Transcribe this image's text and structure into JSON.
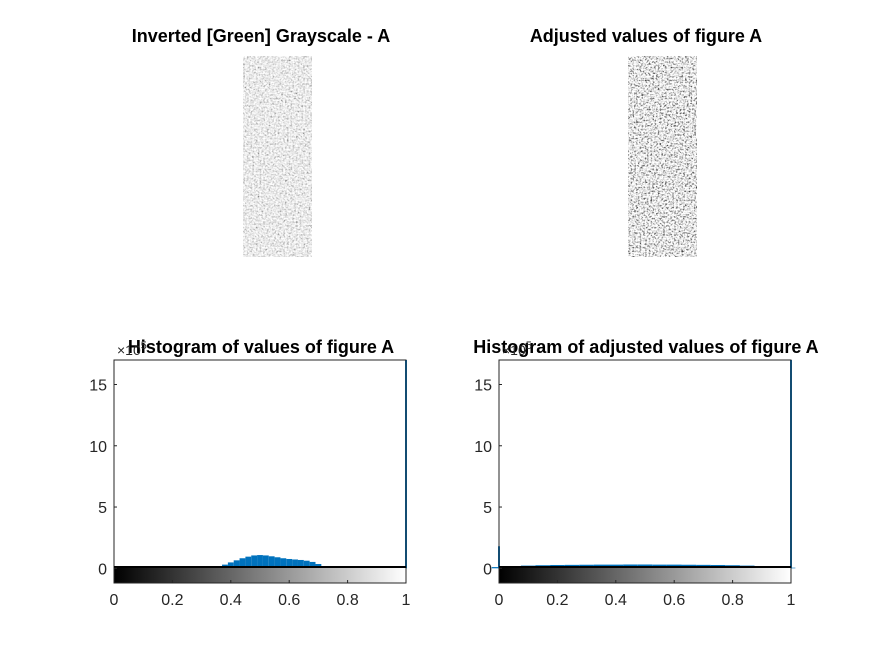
{
  "figure": {
    "images": [
      {
        "title": "Inverted [Green] Grayscale - A"
      },
      {
        "title": "Adjusted values of figure A"
      }
    ]
  },
  "chart_data": [
    {
      "type": "bar",
      "title": "Histogram of values of figure A",
      "xlabel": "",
      "ylabel": "",
      "xlim": [
        0,
        1
      ],
      "ylim": [
        -1.2,
        17
      ],
      "xticks": [
        "0",
        "0.2",
        "0.4",
        "0.6",
        "0.8",
        "1"
      ],
      "yticks": [
        "0",
        "5",
        "10",
        "15"
      ],
      "y_exponent_label": "×10^5",
      "bar_color": "#0072BD",
      "colorbar": "gray",
      "bins": {
        "x": [
          0.3,
          0.32,
          0.34,
          0.36,
          0.38,
          0.4,
          0.42,
          0.44,
          0.46,
          0.48,
          0.5,
          0.52,
          0.54,
          0.56,
          0.58,
          0.6,
          0.62,
          0.64,
          0.66,
          0.68,
          0.7,
          0.72,
          0.74
        ],
        "y": [
          0.02,
          0.05,
          0.1,
          0.18,
          0.3,
          0.48,
          0.65,
          0.82,
          0.95,
          1.05,
          1.08,
          1.05,
          0.98,
          0.9,
          0.82,
          0.76,
          0.72,
          0.68,
          0.62,
          0.52,
          0.35,
          0.15,
          0.03
        ]
      },
      "edge_spike": {
        "x": 1.0,
        "y": 17
      }
    },
    {
      "type": "bar",
      "title": "Histogram of adjusted values of figure A",
      "xlabel": "",
      "ylabel": "",
      "xlim": [
        0,
        1
      ],
      "ylim": [
        -1.2,
        17
      ],
      "xticks": [
        "0",
        "0.2",
        "0.4",
        "0.6",
        "0.8",
        "1"
      ],
      "yticks": [
        "0",
        "5",
        "10",
        "15"
      ],
      "y_exponent_label": "×10^5",
      "bar_color": "#0072BD",
      "colorbar": "gray",
      "bins": {
        "x": [
          0.0,
          0.05,
          0.1,
          0.15,
          0.2,
          0.25,
          0.3,
          0.35,
          0.4,
          0.45,
          0.5,
          0.55,
          0.6,
          0.65,
          0.7,
          0.75,
          0.8,
          0.85,
          0.9,
          0.95,
          0.99
        ],
        "y": [
          0.1,
          0.18,
          0.22,
          0.25,
          0.27,
          0.28,
          0.29,
          0.3,
          0.3,
          0.31,
          0.31,
          0.3,
          0.3,
          0.29,
          0.28,
          0.27,
          0.25,
          0.22,
          0.18,
          0.12,
          0.05
        ]
      },
      "start_spike": {
        "x": 0.0,
        "y": 1.8
      },
      "edge_spike": {
        "x": 1.0,
        "y": 17
      }
    }
  ]
}
